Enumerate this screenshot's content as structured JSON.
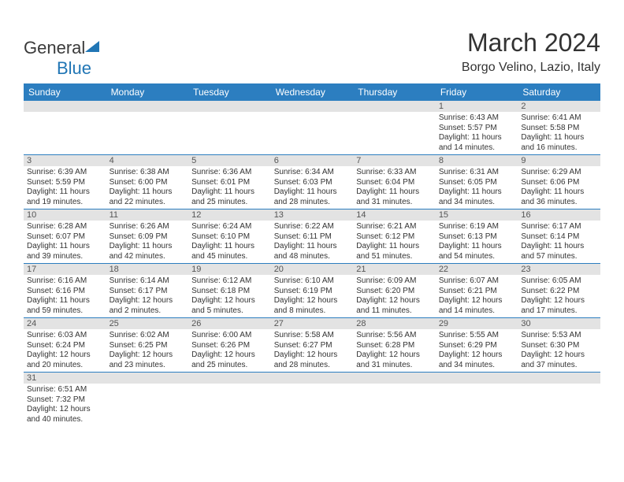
{
  "logo": {
    "text1": "General",
    "text2": "Blue"
  },
  "title": {
    "month": "March 2024",
    "location": "Borgo Velino, Lazio, Italy"
  },
  "colors": {
    "header_bg": "#2c7ec0",
    "header_fg": "#ffffff",
    "daynum_bg": "#e3e3e3",
    "row_border": "#2c7ec0",
    "logo_blue": "#2176b5",
    "text": "#333333",
    "page_bg": "#ffffff"
  },
  "weekdays": [
    "Sunday",
    "Monday",
    "Tuesday",
    "Wednesday",
    "Thursday",
    "Friday",
    "Saturday"
  ],
  "weeks": [
    [
      null,
      null,
      null,
      null,
      null,
      {
        "n": "1",
        "sr": "Sunrise: 6:43 AM",
        "ss": "Sunset: 5:57 PM",
        "dl": "Daylight: 11 hours and 14 minutes."
      },
      {
        "n": "2",
        "sr": "Sunrise: 6:41 AM",
        "ss": "Sunset: 5:58 PM",
        "dl": "Daylight: 11 hours and 16 minutes."
      }
    ],
    [
      {
        "n": "3",
        "sr": "Sunrise: 6:39 AM",
        "ss": "Sunset: 5:59 PM",
        "dl": "Daylight: 11 hours and 19 minutes."
      },
      {
        "n": "4",
        "sr": "Sunrise: 6:38 AM",
        "ss": "Sunset: 6:00 PM",
        "dl": "Daylight: 11 hours and 22 minutes."
      },
      {
        "n": "5",
        "sr": "Sunrise: 6:36 AM",
        "ss": "Sunset: 6:01 PM",
        "dl": "Daylight: 11 hours and 25 minutes."
      },
      {
        "n": "6",
        "sr": "Sunrise: 6:34 AM",
        "ss": "Sunset: 6:03 PM",
        "dl": "Daylight: 11 hours and 28 minutes."
      },
      {
        "n": "7",
        "sr": "Sunrise: 6:33 AM",
        "ss": "Sunset: 6:04 PM",
        "dl": "Daylight: 11 hours and 31 minutes."
      },
      {
        "n": "8",
        "sr": "Sunrise: 6:31 AM",
        "ss": "Sunset: 6:05 PM",
        "dl": "Daylight: 11 hours and 34 minutes."
      },
      {
        "n": "9",
        "sr": "Sunrise: 6:29 AM",
        "ss": "Sunset: 6:06 PM",
        "dl": "Daylight: 11 hours and 36 minutes."
      }
    ],
    [
      {
        "n": "10",
        "sr": "Sunrise: 6:28 AM",
        "ss": "Sunset: 6:07 PM",
        "dl": "Daylight: 11 hours and 39 minutes."
      },
      {
        "n": "11",
        "sr": "Sunrise: 6:26 AM",
        "ss": "Sunset: 6:09 PM",
        "dl": "Daylight: 11 hours and 42 minutes."
      },
      {
        "n": "12",
        "sr": "Sunrise: 6:24 AM",
        "ss": "Sunset: 6:10 PM",
        "dl": "Daylight: 11 hours and 45 minutes."
      },
      {
        "n": "13",
        "sr": "Sunrise: 6:22 AM",
        "ss": "Sunset: 6:11 PM",
        "dl": "Daylight: 11 hours and 48 minutes."
      },
      {
        "n": "14",
        "sr": "Sunrise: 6:21 AM",
        "ss": "Sunset: 6:12 PM",
        "dl": "Daylight: 11 hours and 51 minutes."
      },
      {
        "n": "15",
        "sr": "Sunrise: 6:19 AM",
        "ss": "Sunset: 6:13 PM",
        "dl": "Daylight: 11 hours and 54 minutes."
      },
      {
        "n": "16",
        "sr": "Sunrise: 6:17 AM",
        "ss": "Sunset: 6:14 PM",
        "dl": "Daylight: 11 hours and 57 minutes."
      }
    ],
    [
      {
        "n": "17",
        "sr": "Sunrise: 6:16 AM",
        "ss": "Sunset: 6:16 PM",
        "dl": "Daylight: 11 hours and 59 minutes."
      },
      {
        "n": "18",
        "sr": "Sunrise: 6:14 AM",
        "ss": "Sunset: 6:17 PM",
        "dl": "Daylight: 12 hours and 2 minutes."
      },
      {
        "n": "19",
        "sr": "Sunrise: 6:12 AM",
        "ss": "Sunset: 6:18 PM",
        "dl": "Daylight: 12 hours and 5 minutes."
      },
      {
        "n": "20",
        "sr": "Sunrise: 6:10 AM",
        "ss": "Sunset: 6:19 PM",
        "dl": "Daylight: 12 hours and 8 minutes."
      },
      {
        "n": "21",
        "sr": "Sunrise: 6:09 AM",
        "ss": "Sunset: 6:20 PM",
        "dl": "Daylight: 12 hours and 11 minutes."
      },
      {
        "n": "22",
        "sr": "Sunrise: 6:07 AM",
        "ss": "Sunset: 6:21 PM",
        "dl": "Daylight: 12 hours and 14 minutes."
      },
      {
        "n": "23",
        "sr": "Sunrise: 6:05 AM",
        "ss": "Sunset: 6:22 PM",
        "dl": "Daylight: 12 hours and 17 minutes."
      }
    ],
    [
      {
        "n": "24",
        "sr": "Sunrise: 6:03 AM",
        "ss": "Sunset: 6:24 PM",
        "dl": "Daylight: 12 hours and 20 minutes."
      },
      {
        "n": "25",
        "sr": "Sunrise: 6:02 AM",
        "ss": "Sunset: 6:25 PM",
        "dl": "Daylight: 12 hours and 23 minutes."
      },
      {
        "n": "26",
        "sr": "Sunrise: 6:00 AM",
        "ss": "Sunset: 6:26 PM",
        "dl": "Daylight: 12 hours and 25 minutes."
      },
      {
        "n": "27",
        "sr": "Sunrise: 5:58 AM",
        "ss": "Sunset: 6:27 PM",
        "dl": "Daylight: 12 hours and 28 minutes."
      },
      {
        "n": "28",
        "sr": "Sunrise: 5:56 AM",
        "ss": "Sunset: 6:28 PM",
        "dl": "Daylight: 12 hours and 31 minutes."
      },
      {
        "n": "29",
        "sr": "Sunrise: 5:55 AM",
        "ss": "Sunset: 6:29 PM",
        "dl": "Daylight: 12 hours and 34 minutes."
      },
      {
        "n": "30",
        "sr": "Sunrise: 5:53 AM",
        "ss": "Sunset: 6:30 PM",
        "dl": "Daylight: 12 hours and 37 minutes."
      }
    ],
    [
      {
        "n": "31",
        "sr": "Sunrise: 6:51 AM",
        "ss": "Sunset: 7:32 PM",
        "dl": "Daylight: 12 hours and 40 minutes."
      },
      null,
      null,
      null,
      null,
      null,
      null
    ]
  ]
}
